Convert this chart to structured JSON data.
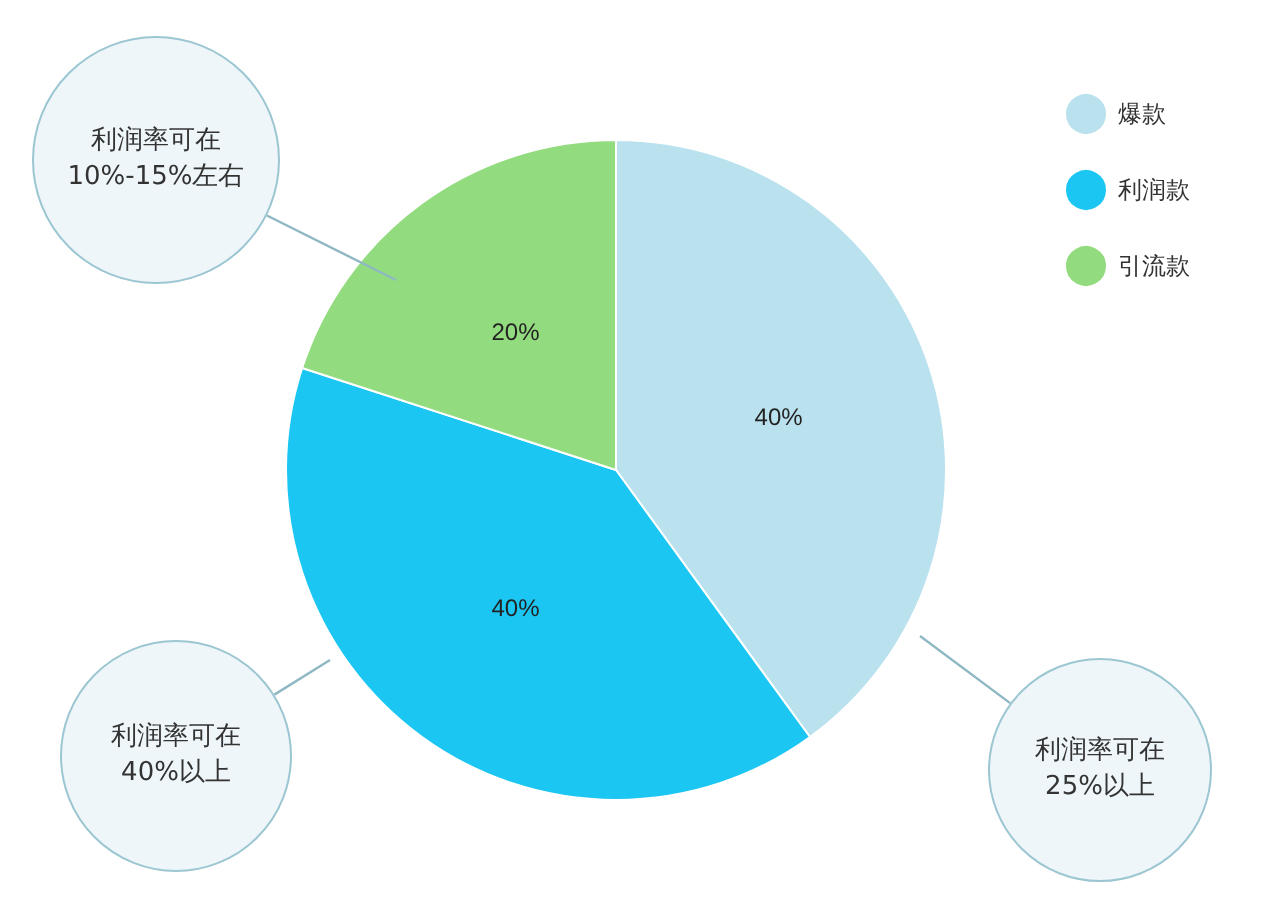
{
  "chart_data": {
    "type": "pie",
    "categories": [
      "爆款",
      "利润款",
      "引流款"
    ],
    "values": [
      40,
      40,
      20
    ],
    "colors": [
      "#b9e1ee",
      "#1cc6f2",
      "#93db7f"
    ],
    "value_labels": [
      "40%",
      "40%",
      "20%"
    ],
    "legend": "top right",
    "annotations": [
      "利润率可在\n25%以上",
      "利润率可在\n40%以上",
      "利润率可在\n10%-15%左右"
    ]
  }
}
